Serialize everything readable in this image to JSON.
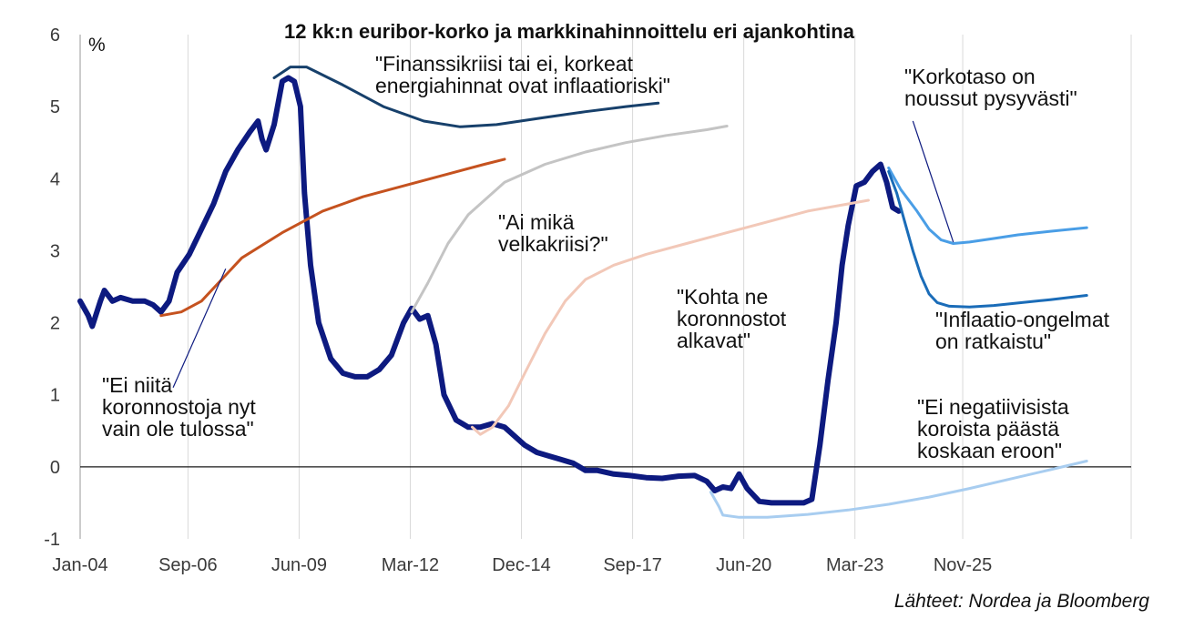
{
  "chart_data": {
    "type": "line",
    "title": "12 kk:n euribor-korko ja markkinahinnoittelu eri ajankohtina",
    "ylabel": "%",
    "source": "Lähteet: Nordea ja Bloomberg",
    "ylim": [
      -1,
      6
    ],
    "yticks": [
      "6",
      "5",
      "4",
      "3",
      "2",
      "1",
      "0",
      "-1"
    ],
    "xlim": [
      "2004-01",
      "2030-01"
    ],
    "xticks": [
      "Jan-04",
      "Sep-06",
      "Jun-09",
      "Mar-12",
      "Dec-14",
      "Sep-17",
      "Jun-20",
      "Mar-23",
      "Nov-25"
    ],
    "grid": "vertical",
    "series": [
      {
        "color": "#0d1a80",
        "points": [
          [
            2004.0,
            2.3
          ],
          [
            2004.2,
            2.1
          ],
          [
            2004.3,
            1.95
          ],
          [
            2004.5,
            2.3
          ],
          [
            2004.6,
            2.45
          ],
          [
            2004.8,
            2.3
          ],
          [
            2005.0,
            2.35
          ],
          [
            2005.3,
            2.3
          ],
          [
            2005.6,
            2.3
          ],
          [
            2005.8,
            2.25
          ],
          [
            2006.0,
            2.15
          ],
          [
            2006.2,
            2.3
          ],
          [
            2006.4,
            2.7
          ],
          [
            2006.7,
            2.95
          ],
          [
            2007.0,
            3.3
          ],
          [
            2007.3,
            3.65
          ],
          [
            2007.6,
            4.1
          ],
          [
            2007.9,
            4.4
          ],
          [
            2008.2,
            4.65
          ],
          [
            2008.4,
            4.8
          ],
          [
            2008.5,
            4.55
          ],
          [
            2008.6,
            4.4
          ],
          [
            2008.8,
            4.75
          ],
          [
            2009.0,
            5.35
          ],
          [
            2009.15,
            5.4
          ],
          [
            2009.3,
            5.35
          ],
          [
            2009.45,
            5.0
          ],
          [
            2009.55,
            3.8
          ],
          [
            2009.7,
            2.8
          ],
          [
            2009.9,
            2.0
          ],
          [
            2010.2,
            1.5
          ],
          [
            2010.5,
            1.3
          ],
          [
            2010.8,
            1.25
          ],
          [
            2011.1,
            1.25
          ],
          [
            2011.4,
            1.35
          ],
          [
            2011.7,
            1.55
          ],
          [
            2012.0,
            2.0
          ],
          [
            2012.2,
            2.2
          ],
          [
            2012.4,
            2.05
          ],
          [
            2012.6,
            2.1
          ],
          [
            2012.8,
            1.7
          ],
          [
            2013.0,
            1.0
          ],
          [
            2013.3,
            0.65
          ],
          [
            2013.6,
            0.55
          ],
          [
            2013.9,
            0.55
          ],
          [
            2014.2,
            0.6
          ],
          [
            2014.5,
            0.55
          ],
          [
            2014.8,
            0.4
          ],
          [
            2015.0,
            0.3
          ],
          [
            2015.3,
            0.2
          ],
          [
            2015.6,
            0.15
          ],
          [
            2015.9,
            0.1
          ],
          [
            2016.2,
            0.05
          ],
          [
            2016.5,
            -0.05
          ],
          [
            2016.8,
            -0.05
          ],
          [
            2017.2,
            -0.1
          ],
          [
            2017.6,
            -0.12
          ],
          [
            2018.0,
            -0.15
          ],
          [
            2018.4,
            -0.16
          ],
          [
            2018.8,
            -0.13
          ],
          [
            2019.2,
            -0.12
          ],
          [
            2019.5,
            -0.2
          ],
          [
            2019.7,
            -0.33
          ],
          [
            2019.9,
            -0.28
          ],
          [
            2020.1,
            -0.3
          ],
          [
            2020.3,
            -0.1
          ],
          [
            2020.5,
            -0.3
          ],
          [
            2020.8,
            -0.48
          ],
          [
            2021.1,
            -0.5
          ],
          [
            2021.5,
            -0.5
          ],
          [
            2021.9,
            -0.5
          ],
          [
            2022.1,
            -0.45
          ],
          [
            2022.3,
            0.3
          ],
          [
            2022.5,
            1.2
          ],
          [
            2022.7,
            2.0
          ],
          [
            2022.85,
            2.8
          ],
          [
            2023.0,
            3.35
          ],
          [
            2023.2,
            3.9
          ],
          [
            2023.4,
            3.95
          ],
          [
            2023.6,
            4.1
          ],
          [
            2023.8,
            4.2
          ],
          [
            2023.95,
            3.95
          ],
          [
            2024.1,
            3.6
          ],
          [
            2024.25,
            3.55
          ]
        ]
      },
      {
        "color": "#c5521f",
        "points": [
          [
            2006.0,
            2.1
          ],
          [
            2006.5,
            2.15
          ],
          [
            2007.0,
            2.3
          ],
          [
            2007.5,
            2.6
          ],
          [
            2008.0,
            2.9
          ],
          [
            2009.0,
            3.25
          ],
          [
            2010.0,
            3.55
          ],
          [
            2011.0,
            3.75
          ],
          [
            2012.0,
            3.9
          ],
          [
            2013.0,
            4.05
          ],
          [
            2014.0,
            4.2
          ],
          [
            2014.5,
            4.27
          ]
        ]
      },
      {
        "color": "#17406b",
        "points": [
          [
            2008.8,
            5.4
          ],
          [
            2009.2,
            5.55
          ],
          [
            2009.6,
            5.55
          ],
          [
            2010.5,
            5.3
          ],
          [
            2011.5,
            5.0
          ],
          [
            2012.5,
            4.8
          ],
          [
            2013.4,
            4.72
          ],
          [
            2014.3,
            4.75
          ],
          [
            2015.5,
            4.85
          ],
          [
            2016.5,
            4.93
          ],
          [
            2017.5,
            5.0
          ],
          [
            2018.3,
            5.05
          ]
        ]
      },
      {
        "color": "#c4c4c4",
        "points": [
          [
            2012.2,
            2.15
          ],
          [
            2012.6,
            2.55
          ],
          [
            2013.1,
            3.1
          ],
          [
            2013.6,
            3.5
          ],
          [
            2014.5,
            3.95
          ],
          [
            2015.5,
            4.2
          ],
          [
            2016.5,
            4.37
          ],
          [
            2017.5,
            4.5
          ],
          [
            2018.5,
            4.6
          ],
          [
            2019.5,
            4.68
          ],
          [
            2020.0,
            4.73
          ]
        ]
      },
      {
        "color": "#f2c8b8",
        "points": [
          [
            2013.7,
            0.55
          ],
          [
            2013.9,
            0.45
          ],
          [
            2014.2,
            0.55
          ],
          [
            2014.6,
            0.85
          ],
          [
            2015.0,
            1.3
          ],
          [
            2015.5,
            1.85
          ],
          [
            2016.0,
            2.3
          ],
          [
            2016.5,
            2.6
          ],
          [
            2017.2,
            2.8
          ],
          [
            2018.0,
            2.95
          ],
          [
            2019.0,
            3.1
          ],
          [
            2020.0,
            3.25
          ],
          [
            2021.0,
            3.4
          ],
          [
            2022.0,
            3.55
          ],
          [
            2023.0,
            3.65
          ],
          [
            2023.5,
            3.7
          ]
        ]
      },
      {
        "color": "#a8cdf0",
        "points": [
          [
            2019.6,
            -0.35
          ],
          [
            2019.8,
            -0.55
          ],
          [
            2019.9,
            -0.67
          ],
          [
            2020.3,
            -0.7
          ],
          [
            2021.0,
            -0.7
          ],
          [
            2022.0,
            -0.66
          ],
          [
            2023.0,
            -0.6
          ],
          [
            2024.0,
            -0.52
          ],
          [
            2025.0,
            -0.42
          ],
          [
            2026.0,
            -0.3
          ],
          [
            2027.0,
            -0.17
          ],
          [
            2028.0,
            -0.04
          ],
          [
            2028.9,
            0.08
          ]
        ]
      },
      {
        "color": "#4a9ee6",
        "points": [
          [
            2024.0,
            4.15
          ],
          [
            2024.3,
            3.85
          ],
          [
            2024.7,
            3.55
          ],
          [
            2025.0,
            3.3
          ],
          [
            2025.3,
            3.15
          ],
          [
            2025.6,
            3.1
          ],
          [
            2026.0,
            3.12
          ],
          [
            2026.6,
            3.17
          ],
          [
            2027.2,
            3.22
          ],
          [
            2028.0,
            3.27
          ],
          [
            2028.9,
            3.32
          ]
        ]
      },
      {
        "color": "#1a6cb8",
        "points": [
          [
            2024.0,
            4.1
          ],
          [
            2024.2,
            3.8
          ],
          [
            2024.4,
            3.4
          ],
          [
            2024.6,
            3.0
          ],
          [
            2024.8,
            2.65
          ],
          [
            2025.0,
            2.4
          ],
          [
            2025.2,
            2.28
          ],
          [
            2025.5,
            2.23
          ],
          [
            2026.0,
            2.22
          ],
          [
            2026.6,
            2.24
          ],
          [
            2027.3,
            2.28
          ],
          [
            2028.0,
            2.32
          ],
          [
            2028.9,
            2.38
          ]
        ]
      }
    ],
    "annotations": [
      {
        "lines": [
          "\"Finanssikriisi tai ei, korkeat",
          "energiahinnat ovat inflaatioriski\""
        ]
      },
      {
        "lines": [
          "\"Korkotaso on",
          "noussut pysyvästi\""
        ]
      },
      {
        "lines": [
          "\"Ai mikä",
          "velkakriisi?\""
        ]
      },
      {
        "lines": [
          "\"Kohta ne",
          "koronnostot",
          "alkavat\""
        ]
      },
      {
        "lines": [
          "\"Inflaatio-ongelmat",
          "on ratkaistu\""
        ]
      },
      {
        "lines": [
          "\"Ei niitä",
          "koronnostoja nyt",
          "vain ole tulossa\""
        ]
      },
      {
        "lines": [
          "\"Ei negatiivisista",
          "koroista päästä",
          "koskaan eroon\""
        ]
      }
    ]
  }
}
